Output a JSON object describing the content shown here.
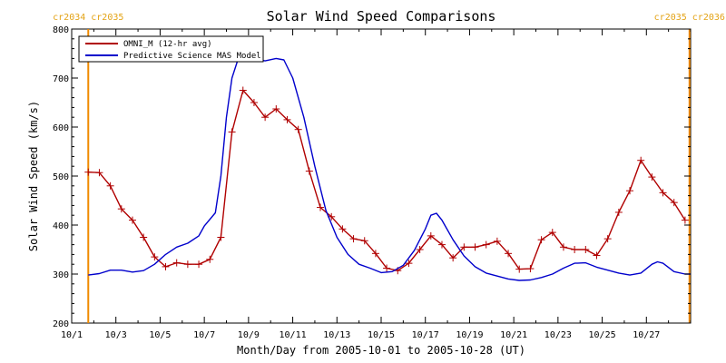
{
  "chart_data": {
    "type": "line",
    "title": "Solar Wind Speed Comparisons",
    "xlabel": "Month/Day from 2005-10-01 to 2005-10-28 (UT)",
    "ylabel": "Solar Wind Speed (km/s)",
    "xlim": [
      0,
      28
    ],
    "ylim": [
      200,
      800
    ],
    "yticks": [
      200,
      300,
      400,
      500,
      600,
      700,
      800
    ],
    "xticks": [
      {
        "x": 0,
        "label": "10/1"
      },
      {
        "x": 2,
        "label": "10/3"
      },
      {
        "x": 4,
        "label": "10/5"
      },
      {
        "x": 6,
        "label": "10/7"
      },
      {
        "x": 8,
        "label": "10/9"
      },
      {
        "x": 10,
        "label": "10/11"
      },
      {
        "x": 12,
        "label": "10/13"
      },
      {
        "x": 14,
        "label": "10/15"
      },
      {
        "x": 16,
        "label": "10/17"
      },
      {
        "x": 18,
        "label": "10/19"
      },
      {
        "x": 20,
        "label": "10/21"
      },
      {
        "x": 22,
        "label": "10/23"
      },
      {
        "x": 24,
        "label": "10/25"
      },
      {
        "x": 26,
        "label": "10/27"
      }
    ],
    "legend_position": "top-left",
    "carrington_markers": [
      {
        "x": 0.75,
        "label_left": "cr2034",
        "label_right": "cr2035"
      },
      {
        "x": 27.95,
        "label_left": "cr2035",
        "label_right": "cr2036"
      }
    ],
    "series": [
      {
        "name": "OMNI_M (12-hr avg)",
        "color": "#b00000",
        "markers": true,
        "points": [
          [
            0.75,
            508
          ],
          [
            1.25,
            507
          ],
          [
            1.75,
            480
          ],
          [
            2.25,
            433
          ],
          [
            2.75,
            410
          ],
          [
            3.25,
            375
          ],
          [
            3.75,
            335
          ],
          [
            4.25,
            315
          ],
          [
            4.75,
            323
          ],
          [
            5.25,
            320
          ],
          [
            5.75,
            320
          ],
          [
            6.25,
            330
          ],
          [
            6.75,
            375
          ],
          [
            7.25,
            590
          ],
          [
            7.75,
            675
          ],
          [
            8.25,
            650
          ],
          [
            8.75,
            620
          ],
          [
            9.25,
            637
          ],
          [
            9.75,
            615
          ],
          [
            10.25,
            595
          ],
          [
            10.75,
            510
          ],
          [
            11.25,
            436
          ],
          [
            11.75,
            417
          ],
          [
            12.25,
            392
          ],
          [
            12.75,
            372
          ],
          [
            13.25,
            368
          ],
          [
            13.75,
            342
          ],
          [
            14.25,
            312
          ],
          [
            14.75,
            307
          ],
          [
            15.25,
            322
          ],
          [
            15.75,
            350
          ],
          [
            16.25,
            378
          ],
          [
            16.75,
            360
          ],
          [
            17.25,
            333
          ],
          [
            17.75,
            355
          ],
          [
            18.25,
            355
          ],
          [
            18.75,
            360
          ],
          [
            19.25,
            367
          ],
          [
            19.75,
            342
          ],
          [
            20.25,
            310
          ],
          [
            20.75,
            311
          ],
          [
            21.25,
            370
          ],
          [
            21.75,
            385
          ],
          [
            22.25,
            355
          ],
          [
            22.75,
            350
          ],
          [
            23.25,
            350
          ],
          [
            23.75,
            338
          ],
          [
            24.25,
            372
          ],
          [
            24.75,
            426
          ],
          [
            25.25,
            470
          ],
          [
            25.75,
            532
          ],
          [
            26.25,
            498
          ],
          [
            26.75,
            466
          ],
          [
            27.25,
            446
          ],
          [
            27.75,
            410
          ]
        ]
      },
      {
        "name": "Predictive Science MAS Model",
        "color": "#0000cc",
        "markers": false,
        "points": [
          [
            0.75,
            298
          ],
          [
            1.25,
            301
          ],
          [
            1.75,
            308
          ],
          [
            2.25,
            308
          ],
          [
            2.75,
            304
          ],
          [
            3.25,
            307
          ],
          [
            3.75,
            320
          ],
          [
            4.25,
            340
          ],
          [
            4.75,
            355
          ],
          [
            5.25,
            363
          ],
          [
            5.75,
            378
          ],
          [
            6.0,
            398
          ],
          [
            6.5,
            425
          ],
          [
            6.75,
            500
          ],
          [
            7.0,
            620
          ],
          [
            7.25,
            700
          ],
          [
            7.5,
            735
          ],
          [
            7.75,
            745
          ],
          [
            8.25,
            740
          ],
          [
            8.75,
            735
          ],
          [
            9.25,
            740
          ],
          [
            9.6,
            737
          ],
          [
            10.0,
            700
          ],
          [
            10.5,
            620
          ],
          [
            11.0,
            520
          ],
          [
            11.5,
            430
          ],
          [
            12.0,
            375
          ],
          [
            12.5,
            340
          ],
          [
            13.0,
            320
          ],
          [
            13.5,
            312
          ],
          [
            14.0,
            303
          ],
          [
            14.5,
            305
          ],
          [
            15.0,
            318
          ],
          [
            15.5,
            348
          ],
          [
            16.0,
            392
          ],
          [
            16.25,
            420
          ],
          [
            16.5,
            424
          ],
          [
            16.75,
            410
          ],
          [
            17.25,
            370
          ],
          [
            17.75,
            337
          ],
          [
            18.25,
            315
          ],
          [
            18.75,
            302
          ],
          [
            19.25,
            296
          ],
          [
            19.75,
            290
          ],
          [
            20.25,
            287
          ],
          [
            20.75,
            288
          ],
          [
            21.25,
            293
          ],
          [
            21.75,
            300
          ],
          [
            22.25,
            312
          ],
          [
            22.75,
            322
          ],
          [
            23.25,
            323
          ],
          [
            23.75,
            314
          ],
          [
            24.25,
            308
          ],
          [
            24.75,
            302
          ],
          [
            25.25,
            298
          ],
          [
            25.75,
            302
          ],
          [
            26.25,
            320
          ],
          [
            26.5,
            325
          ],
          [
            26.75,
            322
          ],
          [
            27.25,
            305
          ],
          [
            27.75,
            300
          ],
          [
            28.0,
            300
          ]
        ]
      }
    ]
  }
}
